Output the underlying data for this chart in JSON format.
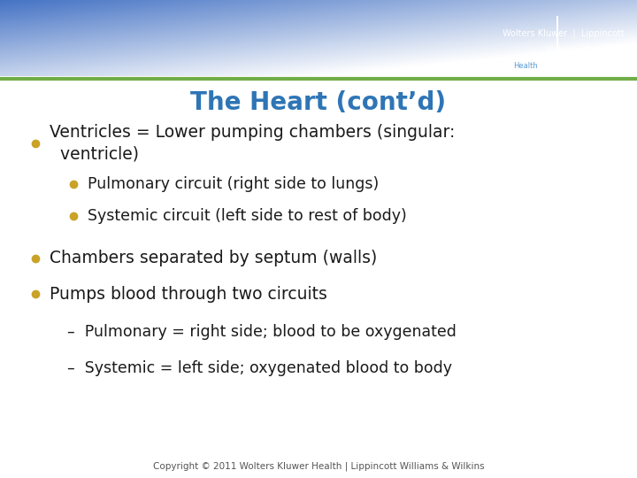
{
  "title": "The Heart (cont’d)",
  "title_color": "#2E75B6",
  "title_fontsize": 20,
  "title_fontstyle": "bold",
  "bg_color": "#FFFFFF",
  "header_blue": "#4472C4",
  "header_light_blue": "#BDD0EB",
  "header_green_line_color": "#70AD47",
  "bullet_color_l0": "#C9A227",
  "bullet_color_l1": "#C9A227",
  "text_color": "#1A1A1A",
  "body_fontsize": 13.5,
  "sub_fontsize": 12.5,
  "dash_fontsize": 12.5,
  "copyright_text": "Copyright © 2011 Wolters Kluwer Health | Lippincott Williams & Wilkins",
  "copyright_fontsize": 7.5,
  "items": [
    {
      "level": 0,
      "text": "Ventricles = Lower pumping chambers (singular:\n  ventricle)",
      "bullet": true
    },
    {
      "level": 1,
      "text": "Pulmonary circuit (right side to lungs)",
      "bullet": true
    },
    {
      "level": 1,
      "text": "Systemic circuit (left side to rest of body)",
      "bullet": true
    },
    {
      "level": 0,
      "text": "Chambers separated by septum (walls)",
      "bullet": true
    },
    {
      "level": 0,
      "text": "Pumps blood through two circuits",
      "bullet": true
    },
    {
      "level": 1,
      "text": "–  Pulmonary = right side; blood to be oxygenated",
      "bullet": false
    },
    {
      "level": 1,
      "text": "–  Systemic = left side; oxygenated blood to body",
      "bullet": false
    }
  ]
}
